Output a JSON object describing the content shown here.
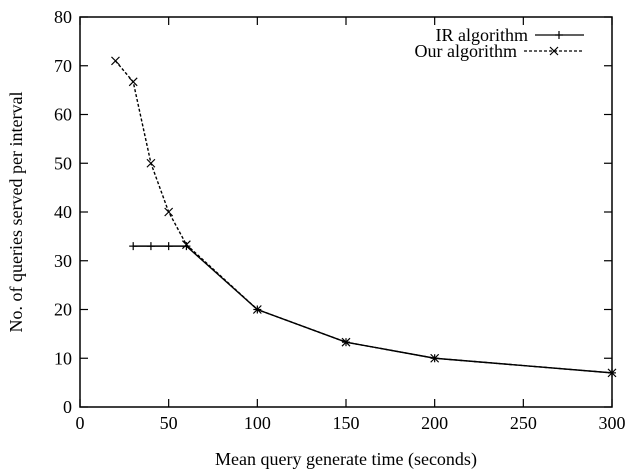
{
  "chart_data": {
    "type": "line",
    "title": "",
    "xlabel": "Mean query generate time (seconds)",
    "ylabel": "No. of queries served per interval",
    "xlim": [
      0,
      300
    ],
    "ylim": [
      0,
      80
    ],
    "xticks": [
      0,
      50,
      100,
      150,
      200,
      250,
      300
    ],
    "yticks": [
      0,
      10,
      20,
      30,
      40,
      50,
      60,
      70,
      80
    ],
    "xtick_labels": [
      "0",
      "50",
      "100",
      "150",
      "200",
      "250",
      "300"
    ],
    "ytick_labels": [
      "0",
      "10",
      "20",
      "30",
      "40",
      "50",
      "60",
      "70",
      "80"
    ],
    "grid": false,
    "legend_position": "top-right",
    "series": [
      {
        "name": "IR algorithm",
        "line_style": "solid",
        "marker": "plus",
        "x": [
          30,
          40,
          50,
          60,
          100,
          150,
          200,
          300
        ],
        "y": [
          33,
          33,
          33,
          33,
          20,
          13.3,
          10,
          7
        ]
      },
      {
        "name": "Our algorithm",
        "line_style": "dashed",
        "marker": "cross",
        "x": [
          20,
          30,
          40,
          50,
          60,
          100,
          150,
          200,
          300
        ],
        "y": [
          71,
          66.7,
          50,
          40,
          33.3,
          20,
          13.3,
          10,
          7
        ]
      }
    ]
  }
}
